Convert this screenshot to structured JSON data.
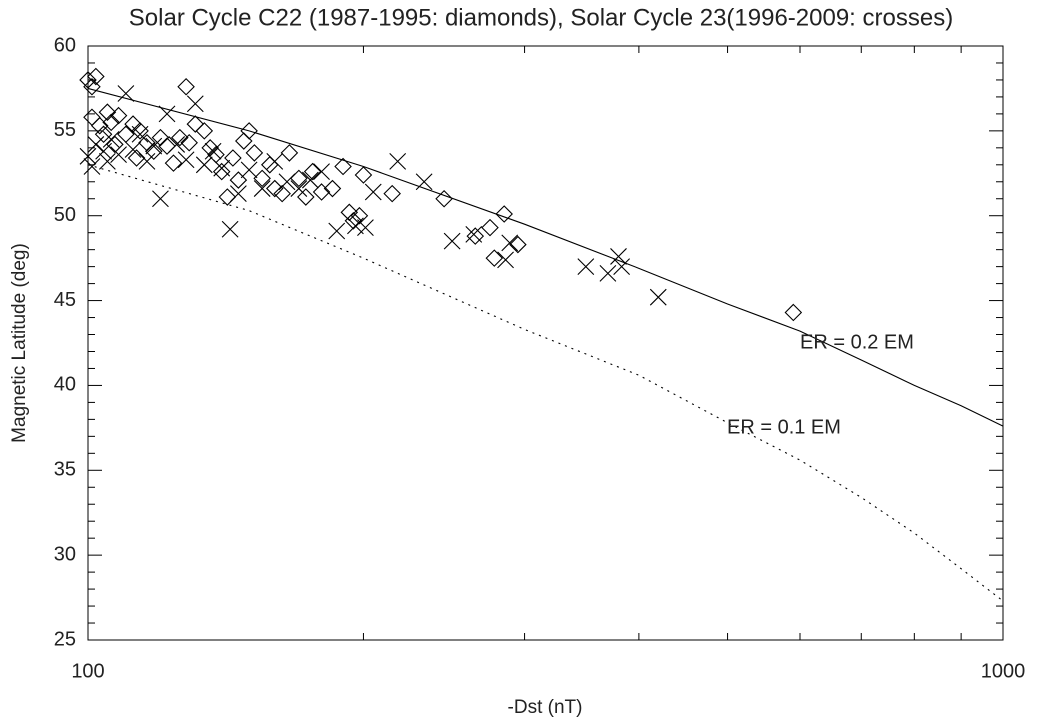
{
  "chart_data": {
    "type": "scatter",
    "title": "Solar Cycle C22 (1987-1995: diamonds), Solar Cycle 23(1996-2009: crosses)",
    "xlabel": "-Dst (nT)",
    "ylabel": "Magnetic Latitude (deg)",
    "xscale": "log",
    "xlim": [
      100,
      1000
    ],
    "xticks": [
      100,
      1000
    ],
    "xminorticks": [
      200,
      300,
      400,
      500,
      600,
      700,
      800,
      900
    ],
    "ylim": [
      25,
      60
    ],
    "yticks": [
      25,
      30,
      35,
      40,
      45,
      50,
      55,
      60
    ],
    "yminorticks": [
      26,
      27,
      28,
      29,
      31,
      32,
      33,
      34,
      36,
      37,
      38,
      39,
      41,
      42,
      43,
      44,
      46,
      47,
      48,
      49,
      51,
      52,
      53,
      54,
      56,
      57,
      58,
      59
    ],
    "series": [
      {
        "type": "scatter",
        "marker": "diamond",
        "color": "#000000",
        "x": [
          100,
          102,
          101,
          101,
          103,
          104,
          105,
          106,
          107,
          108,
          110,
          112,
          114,
          113,
          116,
          118,
          120,
          122,
          124,
          126,
          128,
          129,
          131,
          134,
          136,
          138,
          140,
          142,
          144,
          146,
          148,
          150,
          152,
          155,
          158,
          160,
          163,
          166,
          170,
          173,
          176,
          180,
          185,
          190,
          193,
          195,
          198,
          200,
          215,
          245,
          265,
          275,
          278,
          285,
          295,
          590
        ],
        "values": [
          58.0,
          58.2,
          57.6,
          55.8,
          55.3,
          54.8,
          56.1,
          55.5,
          54.2,
          55.9,
          54.8,
          55.4,
          55.0,
          53.4,
          54.3,
          53.8,
          54.6,
          54.1,
          53.1,
          54.6,
          57.6,
          54.3,
          55.4,
          55.0,
          54.0,
          53.6,
          52.6,
          51.1,
          53.4,
          52.1,
          54.4,
          55.0,
          53.7,
          52.2,
          53.0,
          51.6,
          51.3,
          53.7,
          52.2,
          51.1,
          52.6,
          51.4,
          51.6,
          52.9,
          50.2,
          49.7,
          50.0,
          52.4,
          51.3,
          51.0,
          48.8,
          49.3,
          47.5,
          50.1,
          48.3,
          44.3
        ]
      },
      {
        "type": "scatter",
        "marker": "cross",
        "color": "#000000",
        "x": [
          100,
          101,
          102,
          104,
          105,
          106,
          108,
          110,
          112,
          114,
          116,
          118,
          120,
          122,
          125,
          128,
          131,
          134,
          137,
          140,
          143,
          146,
          150,
          155,
          160,
          165,
          170,
          175,
          180,
          187,
          196,
          201,
          205,
          218,
          233,
          250,
          264,
          286,
          289,
          350,
          370,
          380,
          383,
          420
        ],
        "values": [
          53.5,
          52.9,
          54.2,
          53.8,
          53.2,
          54.5,
          53.6,
          57.2,
          53.9,
          54.8,
          53.2,
          54.1,
          51.0,
          56.0,
          54.2,
          53.3,
          56.6,
          53.0,
          53.8,
          52.8,
          49.2,
          51.3,
          52.7,
          51.6,
          53.2,
          52.0,
          51.6,
          52.1,
          52.6,
          49.1,
          49.4,
          49.3,
          51.4,
          53.2,
          52.0,
          48.5,
          48.9,
          47.4,
          48.4,
          47.0,
          46.6,
          47.6,
          47.0,
          45.2
        ]
      },
      {
        "type": "line",
        "name": "ER = 0.2 EM",
        "line_style": "solid",
        "color": "#000000",
        "x": [
          100,
          150,
          200,
          300,
          400,
          500,
          600,
          700,
          800,
          900,
          1000
        ],
        "values": [
          57.5,
          55.0,
          52.9,
          49.5,
          46.9,
          44.8,
          43.2,
          41.5,
          40.0,
          38.8,
          37.6
        ]
      },
      {
        "type": "line",
        "name": "ER = 0.1 EM",
        "line_style": "dotted",
        "color": "#000000",
        "x": [
          100,
          150,
          200,
          300,
          400,
          500,
          600,
          700,
          800,
          900,
          1000
        ],
        "values": [
          53.0,
          50.3,
          47.5,
          43.3,
          40.6,
          37.8,
          35.6,
          33.4,
          31.3,
          29.2,
          27.3
        ]
      }
    ]
  }
}
